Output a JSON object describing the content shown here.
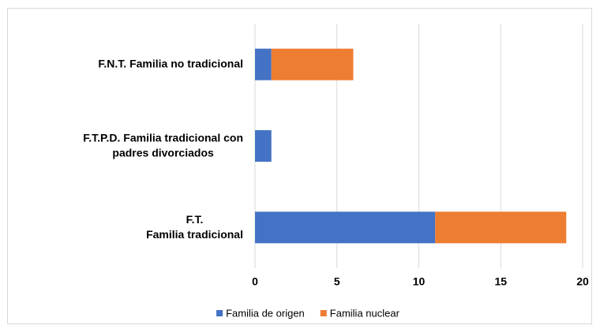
{
  "chart_data": {
    "type": "stacked_bar_horizontal",
    "categories": [
      "F.N.T. Familia no tradicional",
      "F.T.P.D. Familia tradicional con\npadres divorciados",
      "F.T.\nFamilia tradicional"
    ],
    "series": [
      {
        "name": "Familia de origen",
        "color": "#4472c4",
        "values": [
          1,
          1,
          11
        ]
      },
      {
        "name": "Familia nuclear",
        "color": "#ed7d31",
        "values": [
          5,
          0,
          8
        ]
      }
    ],
    "xlim": [
      0,
      20
    ],
    "xticks": [
      0,
      5,
      10,
      15,
      20
    ],
    "grid": true,
    "legend": "bottom"
  }
}
